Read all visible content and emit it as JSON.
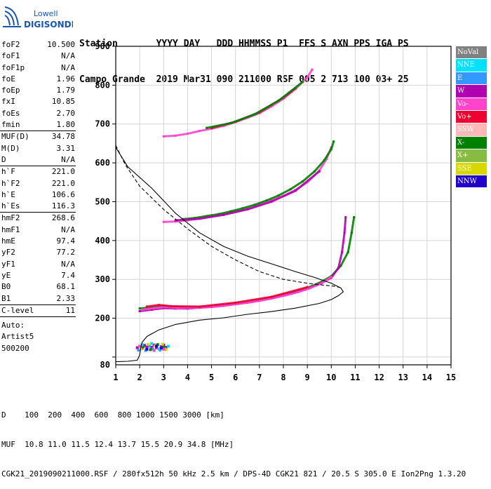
{
  "logo": {
    "line1": "Lowell",
    "line2": "DIGISONDE"
  },
  "header": {
    "row1": "Station       YYYY DAY   DDD HHMMSS P1  FFS S AXN PPS IGA PS",
    "row2": "Campo Grande  2019 Mar31 090 211000 RSF 005 2 713 100 03+ 25"
  },
  "params": {
    "group1": [
      {
        "label": "foF2",
        "value": "10.500"
      },
      {
        "label": "foF1",
        "value": "N/A"
      },
      {
        "label": "foF1p",
        "value": "N/A"
      },
      {
        "label": "foE",
        "value": "1.96"
      },
      {
        "label": "foEp",
        "value": "1.79"
      },
      {
        "label": "fxI",
        "value": "10.85"
      },
      {
        "label": "foEs",
        "value": "2.70"
      },
      {
        "label": "fmin",
        "value": "1.80"
      }
    ],
    "group2": [
      {
        "label": "MUF(D)",
        "value": "34.78"
      },
      {
        "label": "M(D)",
        "value": "3.31"
      },
      {
        "label": "D",
        "value": "N/A"
      }
    ],
    "group3": [
      {
        "label": "h`F",
        "value": "221.0"
      },
      {
        "label": "h`F2",
        "value": "221.0"
      },
      {
        "label": "h`E",
        "value": "106.6"
      },
      {
        "label": "h`Es",
        "value": "116.3"
      }
    ],
    "group4": [
      {
        "label": "hmF2",
        "value": "268.6"
      },
      {
        "label": "hmF1",
        "value": "N/A"
      },
      {
        "label": "hmE",
        "value": "97.4"
      },
      {
        "label": "yF2",
        "value": "77.2"
      },
      {
        "label": "yF1",
        "value": "N/A"
      },
      {
        "label": "yE",
        "value": "7.4"
      },
      {
        "label": "B0",
        "value": "68.1"
      },
      {
        "label": "B1",
        "value": "2.33"
      }
    ],
    "group5": [
      {
        "label": "C-level",
        "value": "11"
      }
    ],
    "auto_lines": [
      "Auto:",
      "Artist5",
      "500200"
    ]
  },
  "legend": [
    {
      "label": "NoVal",
      "color": "#808080",
      "text_color": "#ffffff"
    },
    {
      "label": "NNE",
      "color": "#00e0ff",
      "text_color": "#ffffff"
    },
    {
      "label": "E",
      "color": "#3399ff",
      "text_color": "#ffffff"
    },
    {
      "label": "W",
      "color": "#b000b0",
      "text_color": "#ffffff"
    },
    {
      "label": "Vo-",
      "color": "#ff44cc",
      "text_color": "#ffffff"
    },
    {
      "label": "Vo+",
      "color": "#ee0033",
      "text_color": "#ffffff"
    },
    {
      "label": "SSW",
      "color": "#ffb8b8",
      "text_color": "#ffffff"
    },
    {
      "label": "X-",
      "color": "#008000",
      "text_color": "#ffffff"
    },
    {
      "label": "X+",
      "color": "#88bb44",
      "text_color": "#ffffff"
    },
    {
      "label": "SSE",
      "color": "#d8d800",
      "text_color": "#ffffff"
    },
    {
      "label": "NNW",
      "color": "#2200cc",
      "text_color": "#ffffff"
    }
  ],
  "footer": {
    "line1": "D    100  200  400  600  800 1000 1500 3000 [km]",
    "line2": "MUF  10.8 11.0 11.5 12.4 13.7 15.5 20.9 34.8 [MHz]",
    "line3": "CGK21_2019090211000.RSF / 280fx512h 50 kHz 2.5 km / DPS-4D CGK21 821 / 20.5 S 305.0 E Ion2Png 1.3.20"
  },
  "chart_data": {
    "type": "scatter",
    "title": "",
    "xlabel": "",
    "ylabel": "",
    "xlim": [
      1,
      15
    ],
    "ylim": [
      80,
      900
    ],
    "xticks": [
      1,
      2,
      3,
      4,
      5,
      6,
      7,
      8,
      9,
      10,
      11,
      12,
      13,
      14,
      15
    ],
    "yticks": [
      100,
      200,
      300,
      400,
      500,
      600,
      700,
      800,
      900
    ],
    "y_tick_labels": [
      "",
      "200",
      "300",
      "400",
      "500",
      "600",
      "700",
      "800",
      "900"
    ],
    "y_bottom_label": "80",
    "grid": true,
    "series": [
      {
        "name": "X-",
        "color": "#008000",
        "style": "trace",
        "points": [
          [
            2.0,
            225
          ],
          [
            2.5,
            228
          ],
          [
            3.0,
            232
          ],
          [
            3.5,
            229
          ],
          [
            4.0,
            228
          ],
          [
            4.5,
            229
          ],
          [
            5.0,
            231
          ],
          [
            5.5,
            234
          ],
          [
            6.0,
            238
          ],
          [
            6.5,
            242
          ],
          [
            7.0,
            247
          ],
          [
            7.5,
            253
          ],
          [
            8.0,
            260
          ],
          [
            8.5,
            268
          ],
          [
            9.0,
            278
          ],
          [
            9.5,
            291
          ],
          [
            10.0,
            308
          ],
          [
            10.4,
            335
          ],
          [
            10.7,
            370
          ],
          [
            10.85,
            420
          ],
          [
            10.95,
            460
          ]
        ]
      },
      {
        "name": "W",
        "color": "#b000b0",
        "style": "trace",
        "points": [
          [
            2.0,
            218
          ],
          [
            2.5,
            222
          ],
          [
            3.0,
            226
          ],
          [
            3.5,
            225
          ],
          [
            4.0,
            225
          ],
          [
            4.5,
            227
          ],
          [
            5.0,
            229
          ],
          [
            5.5,
            232
          ],
          [
            6.0,
            236
          ],
          [
            6.5,
            240
          ],
          [
            7.0,
            245
          ],
          [
            7.5,
            251
          ],
          [
            8.0,
            258
          ],
          [
            8.5,
            266
          ],
          [
            9.0,
            276
          ],
          [
            9.5,
            288
          ],
          [
            10.0,
            304
          ],
          [
            10.3,
            330
          ],
          [
            10.45,
            370
          ],
          [
            10.55,
            420
          ],
          [
            10.6,
            460
          ]
        ]
      },
      {
        "name": "Vo-",
        "color": "#ff44cc",
        "style": "trace",
        "points": [
          [
            2.1,
            222
          ],
          [
            2.6,
            226
          ],
          [
            3.1,
            229
          ],
          [
            3.6,
            226
          ],
          [
            4.1,
            227
          ],
          [
            4.6,
            228
          ],
          [
            5.1,
            230
          ],
          [
            5.6,
            233
          ],
          [
            6.1,
            237
          ],
          [
            6.6,
            241
          ],
          [
            7.1,
            246
          ],
          [
            7.6,
            252
          ],
          [
            8.1,
            259
          ],
          [
            8.6,
            267
          ],
          [
            9.1,
            277
          ],
          [
            9.6,
            290
          ],
          [
            10.0,
            306
          ]
        ]
      },
      {
        "name": "Vo+",
        "color": "#ee0033",
        "style": "trace",
        "points": [
          [
            2.3,
            230
          ],
          [
            2.8,
            234
          ],
          [
            3.3,
            231
          ],
          [
            4.5,
            230
          ],
          [
            6.0,
            240
          ],
          [
            7.5,
            255
          ],
          [
            9.0,
            280
          ]
        ]
      },
      {
        "name": "Vo-",
        "color": "#ff44cc",
        "style": "trace",
        "points": [
          [
            3.0,
            448
          ],
          [
            3.5,
            449
          ],
          [
            4.0,
            452
          ],
          [
            4.5,
            457
          ],
          [
            5.0,
            462
          ],
          [
            5.5,
            468
          ],
          [
            6.0,
            474
          ],
          [
            6.5,
            482
          ],
          [
            7.0,
            492
          ],
          [
            7.5,
            503
          ],
          [
            8.0,
            515
          ],
          [
            8.5,
            530
          ],
          [
            9.0,
            550
          ],
          [
            9.5,
            580
          ],
          [
            9.8,
            610
          ],
          [
            10.0,
            640
          ]
        ]
      },
      {
        "name": "X-",
        "color": "#008000",
        "style": "trace",
        "points": [
          [
            3.8,
            455
          ],
          [
            4.3,
            458
          ],
          [
            4.8,
            463
          ],
          [
            5.3,
            468
          ],
          [
            5.8,
            475
          ],
          [
            6.3,
            483
          ],
          [
            6.8,
            492
          ],
          [
            7.3,
            503
          ],
          [
            7.8,
            516
          ],
          [
            8.3,
            532
          ],
          [
            8.8,
            552
          ],
          [
            9.3,
            578
          ],
          [
            9.7,
            606
          ],
          [
            10.0,
            635
          ],
          [
            10.1,
            655
          ]
        ]
      },
      {
        "name": "W",
        "color": "#b000b0",
        "style": "trace",
        "points": [
          [
            3.5,
            452
          ],
          [
            4.5,
            456
          ],
          [
            5.5,
            466
          ],
          [
            6.5,
            480
          ],
          [
            7.5,
            500
          ],
          [
            8.5,
            528
          ],
          [
            9.5,
            578
          ]
        ]
      },
      {
        "name": "Vo-",
        "color": "#ff44cc",
        "style": "trace",
        "points": [
          [
            3.0,
            668
          ],
          [
            3.5,
            670
          ],
          [
            4.0,
            675
          ],
          [
            4.5,
            682
          ],
          [
            5.0,
            688
          ],
          [
            5.5,
            695
          ],
          [
            6.0,
            705
          ],
          [
            6.5,
            716
          ],
          [
            7.0,
            728
          ],
          [
            7.5,
            745
          ],
          [
            8.0,
            765
          ],
          [
            8.5,
            790
          ],
          [
            9.0,
            820
          ],
          [
            9.2,
            840
          ]
        ]
      },
      {
        "name": "Vo+",
        "color": "#ee0033",
        "style": "trace",
        "points": [
          [
            5.0,
            690
          ],
          [
            6.0,
            706
          ],
          [
            7.0,
            730
          ],
          [
            8.0,
            768
          ],
          [
            8.5,
            792
          ]
        ]
      },
      {
        "name": "X-",
        "color": "#008000",
        "style": "trace",
        "points": [
          [
            4.8,
            690
          ],
          [
            5.8,
            702
          ],
          [
            6.8,
            725
          ],
          [
            7.8,
            760
          ],
          [
            8.8,
            808
          ]
        ]
      },
      {
        "name": "Es",
        "color": "#b000b0",
        "style": "cluster",
        "points": [
          [
            1.9,
            124
          ],
          [
            2.1,
            123
          ],
          [
            2.3,
            126
          ],
          [
            2.5,
            125
          ],
          [
            2.7,
            124
          ],
          [
            2.9,
            127
          ],
          [
            3.1,
            125
          ],
          [
            2.2,
            130
          ],
          [
            2.6,
            131
          ],
          [
            3.0,
            131
          ]
        ]
      },
      {
        "name": "Es",
        "color": "#3399ff",
        "style": "cluster",
        "points": [
          [
            1.95,
            118
          ],
          [
            2.25,
            117
          ],
          [
            2.55,
            121
          ],
          [
            2.85,
            118
          ],
          [
            3.05,
            122
          ],
          [
            2.4,
            128
          ]
        ]
      },
      {
        "name": "Es",
        "color": "#d8d800",
        "style": "cluster",
        "points": [
          [
            2.05,
            121
          ],
          [
            2.35,
            133
          ],
          [
            2.65,
            129
          ],
          [
            2.95,
            133
          ],
          [
            3.1,
            119
          ]
        ]
      },
      {
        "name": "Es",
        "color": "#008000",
        "style": "cluster",
        "points": [
          [
            2.15,
            127
          ],
          [
            2.45,
            119
          ],
          [
            2.75,
            132
          ],
          [
            3.0,
            125
          ]
        ]
      },
      {
        "name": "Es",
        "color": "#00e0ff",
        "style": "cluster",
        "points": [
          [
            2.1,
            132
          ],
          [
            2.5,
            135
          ],
          [
            2.8,
            121
          ],
          [
            3.2,
            128
          ]
        ]
      },
      {
        "name": "Es",
        "color": "#ff44cc",
        "style": "cluster",
        "points": [
          [
            2.0,
            128
          ],
          [
            2.6,
            117
          ],
          [
            3.0,
            120
          ]
        ]
      },
      {
        "name": "NNW",
        "color": "#2200cc",
        "style": "cluster",
        "points": [
          [
            2.3,
            120
          ],
          [
            2.7,
            128
          ],
          [
            2.9,
            123
          ]
        ]
      }
    ],
    "profile": {
      "name": "profile",
      "color": "#000000",
      "style": "solid",
      "points": [
        [
          1.0,
          88
        ],
        [
          1.5,
          89
        ],
        [
          1.9,
          92
        ],
        [
          2.0,
          105
        ],
        [
          2.05,
          125
        ],
        [
          2.1,
          138
        ],
        [
          2.3,
          153
        ],
        [
          2.8,
          170
        ],
        [
          3.5,
          184
        ],
        [
          4.5,
          195
        ],
        [
          5.5,
          201
        ],
        [
          6.5,
          210
        ],
        [
          7.5,
          217
        ],
        [
          8.5,
          226
        ],
        [
          9.5,
          238
        ],
        [
          10.0,
          248
        ],
        [
          10.3,
          258
        ],
        [
          10.5,
          268
        ],
        [
          10.4,
          278
        ],
        [
          10.0,
          290
        ],
        [
          9.3,
          305
        ],
        [
          8.5,
          320
        ],
        [
          7.5,
          340
        ],
        [
          6.5,
          360
        ],
        [
          5.5,
          385
        ],
        [
          4.5,
          420
        ],
        [
          3.5,
          470
        ],
        [
          2.5,
          535
        ],
        [
          1.5,
          590
        ],
        [
          1.0,
          640
        ]
      ]
    },
    "muf_curve": {
      "name": "muf",
      "color": "#000000",
      "style": "dashed",
      "points": [
        [
          1.0,
          645
        ],
        [
          1.4,
          595
        ],
        [
          2.0,
          540
        ],
        [
          3.0,
          480
        ],
        [
          4.0,
          430
        ],
        [
          5.0,
          385
        ],
        [
          6.0,
          350
        ],
        [
          7.0,
          320
        ],
        [
          8.0,
          300
        ],
        [
          9.0,
          290
        ],
        [
          9.7,
          285
        ],
        [
          10.2,
          282
        ],
        [
          10.4,
          278
        ]
      ]
    }
  }
}
